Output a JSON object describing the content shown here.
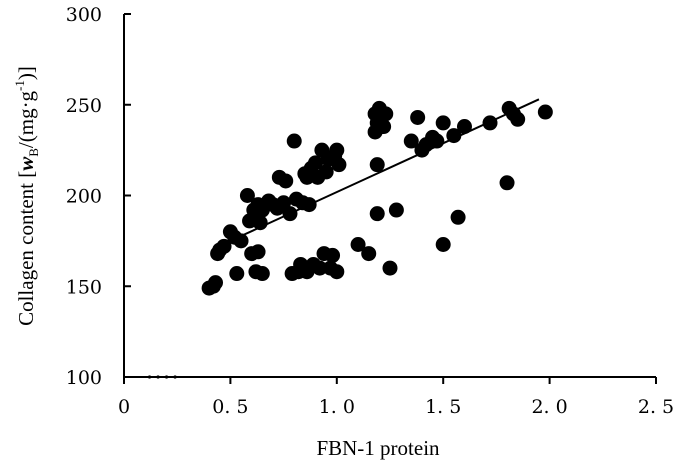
{
  "chart_data": {
    "type": "scatter",
    "title": "",
    "xlabel": "FBN-1 protein",
    "ylabel": {
      "prefix": "Collagen content [",
      "symbol": "w",
      "sub": "B",
      "mid": "/(mg·g",
      "sup": "-1",
      "suffix": ")]"
    },
    "xlim": [
      0,
      2.5
    ],
    "ylim": [
      100,
      300
    ],
    "xticks": [
      0,
      0.5,
      1.0,
      1.5,
      2.0,
      2.5
    ],
    "xtick_labels": [
      "0",
      "0. 5",
      "1. 0",
      "1. 5",
      "2. 0",
      "2. 5"
    ],
    "yticks": [
      100,
      150,
      200,
      250,
      300
    ],
    "ytick_labels": [
      "100",
      "150",
      "200",
      "250",
      "300"
    ],
    "grid": false,
    "point_color": "#000000",
    "points": [
      [
        0.4,
        149
      ],
      [
        0.42,
        150
      ],
      [
        0.43,
        152
      ],
      [
        0.44,
        168
      ],
      [
        0.45,
        170
      ],
      [
        0.47,
        172
      ],
      [
        0.5,
        180
      ],
      [
        0.52,
        177
      ],
      [
        0.53,
        157
      ],
      [
        0.55,
        175
      ],
      [
        0.58,
        200
      ],
      [
        0.59,
        186
      ],
      [
        0.6,
        168
      ],
      [
        0.61,
        192
      ],
      [
        0.62,
        158
      ],
      [
        0.63,
        195
      ],
      [
        0.63,
        169
      ],
      [
        0.64,
        185
      ],
      [
        0.65,
        192
      ],
      [
        0.65,
        157
      ],
      [
        0.68,
        197
      ],
      [
        0.7,
        195
      ],
      [
        0.72,
        193
      ],
      [
        0.73,
        210
      ],
      [
        0.75,
        196
      ],
      [
        0.76,
        208
      ],
      [
        0.78,
        190
      ],
      [
        0.79,
        157
      ],
      [
        0.8,
        230
      ],
      [
        0.81,
        198
      ],
      [
        0.82,
        158
      ],
      [
        0.83,
        162
      ],
      [
        0.84,
        196
      ],
      [
        0.85,
        212
      ],
      [
        0.86,
        210
      ],
      [
        0.86,
        158
      ],
      [
        0.87,
        195
      ],
      [
        0.88,
        215
      ],
      [
        0.89,
        162
      ],
      [
        0.9,
        218
      ],
      [
        0.91,
        210
      ],
      [
        0.92,
        160
      ],
      [
        0.93,
        225
      ],
      [
        0.94,
        168
      ],
      [
        0.95,
        213
      ],
      [
        0.96,
        220
      ],
      [
        0.97,
        160
      ],
      [
        0.98,
        167
      ],
      [
        0.99,
        222
      ],
      [
        1.0,
        225
      ],
      [
        1.0,
        158
      ],
      [
        1.01,
        217
      ],
      [
        1.1,
        173
      ],
      [
        1.15,
        168
      ],
      [
        1.18,
        245
      ],
      [
        1.18,
        235
      ],
      [
        1.19,
        240
      ],
      [
        1.19,
        217
      ],
      [
        1.19,
        190
      ],
      [
        1.2,
        248
      ],
      [
        1.21,
        243
      ],
      [
        1.22,
        238
      ],
      [
        1.23,
        245
      ],
      [
        1.25,
        160
      ],
      [
        1.28,
        192
      ],
      [
        1.35,
        230
      ],
      [
        1.38,
        243
      ],
      [
        1.4,
        225
      ],
      [
        1.42,
        228
      ],
      [
        1.45,
        232
      ],
      [
        1.47,
        230
      ],
      [
        1.5,
        173
      ],
      [
        1.5,
        240
      ],
      [
        1.55,
        233
      ],
      [
        1.57,
        188
      ],
      [
        1.6,
        238
      ],
      [
        1.72,
        240
      ],
      [
        1.8,
        207
      ],
      [
        1.81,
        248
      ],
      [
        1.83,
        245
      ],
      [
        1.85,
        242
      ],
      [
        1.98,
        246
      ],
      [
        0.12,
        100
      ],
      [
        0.16,
        100
      ],
      [
        0.2,
        100
      ],
      [
        0.24,
        100
      ]
    ],
    "trendline": {
      "x": [
        0.5,
        1.95
      ],
      "y": [
        175,
        253
      ]
    }
  }
}
